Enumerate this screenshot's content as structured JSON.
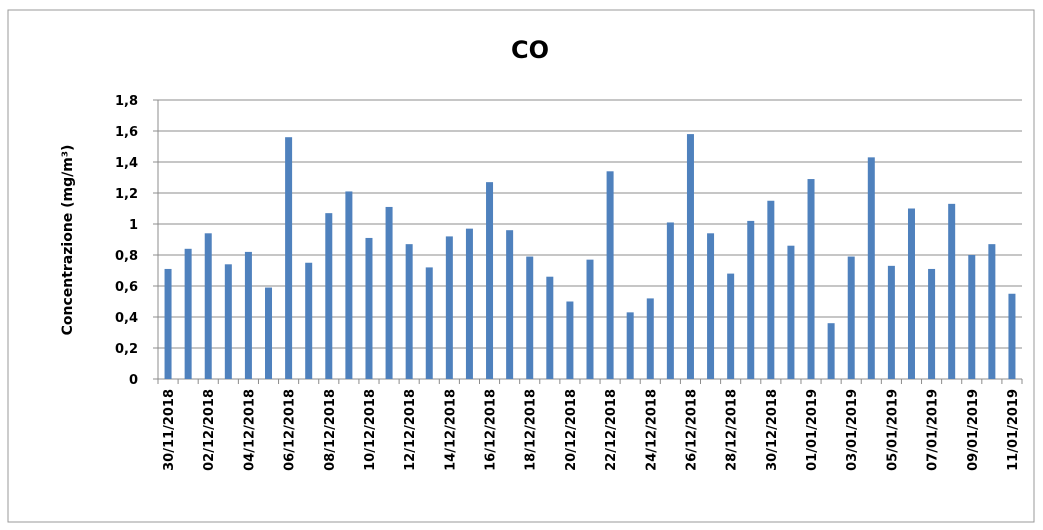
{
  "chart_data": {
    "type": "bar",
    "title": "CO",
    "y_label": "Concentrazione (mg/m³)",
    "categories": [
      "30/11/2018",
      null,
      "02/12/2018",
      null,
      "04/12/2018",
      null,
      "06/12/2018",
      null,
      "08/12/2018",
      null,
      "10/12/2018",
      null,
      "12/12/2018",
      null,
      "14/12/2018",
      null,
      "16/12/2018",
      null,
      "18/12/2018",
      null,
      "20/12/2018",
      null,
      "22/12/2018",
      null,
      "24/12/2018",
      null,
      "26/12/2018",
      null,
      "28/12/2018",
      null,
      "30/12/2018",
      null,
      "01/01/2019",
      null,
      "03/01/2019",
      null,
      "05/01/2019",
      null,
      "07/01/2019",
      null,
      "09/01/2019",
      null,
      "11/01/2019"
    ],
    "values": [
      0.71,
      0.84,
      0.94,
      0.74,
      0.82,
      0.59,
      1.56,
      0.75,
      1.07,
      1.21,
      0.91,
      1.11,
      0.87,
      0.72,
      0.92,
      0.97,
      1.27,
      0.96,
      0.79,
      0.66,
      0.5,
      0.77,
      1.34,
      0.43,
      0.52,
      1.01,
      1.58,
      0.94,
      0.68,
      1.02,
      1.15,
      0.86,
      1.29,
      0.36,
      0.79,
      1.43,
      0.73,
      1.1,
      0.71,
      1.13,
      0.8,
      0.87,
      0.55
    ],
    "color": "#4f81bd",
    "ylim": [
      0,
      1.8
    ],
    "yticks": [
      0,
      {
        "value": 0.2,
        "label": "0,2"
      },
      {
        "value": 0.4,
        "label": "0,4"
      },
      {
        "value": 0.6,
        "label": "0,6"
      },
      {
        "value": 0.8,
        "label": "0,8"
      },
      1,
      {
        "value": 1.2,
        "label": "1,2"
      },
      {
        "value": 1.4,
        "label": "1,4"
      },
      {
        "value": 1.6,
        "label": "1,6"
      },
      {
        "value": 1.8,
        "label": "1,8"
      }
    ],
    "grid": true
  }
}
